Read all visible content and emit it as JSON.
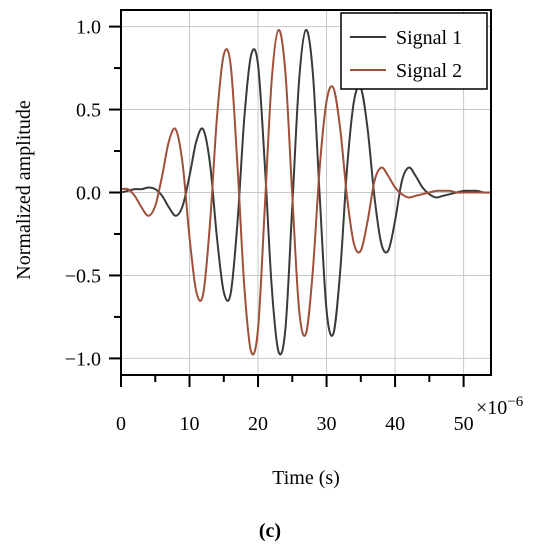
{
  "chart_data": {
    "type": "line",
    "xlabel": "Time (s)",
    "ylabel": "Normalized amplitude",
    "x_multiplier_label": "×10",
    "x_multiplier_exponent": "−6",
    "xlim": [
      0,
      54
    ],
    "ylim": [
      -1.1,
      1.1
    ],
    "x_ticks": [
      0,
      10,
      20,
      30,
      40,
      50
    ],
    "y_ticks": [
      -1.0,
      -0.5,
      0.0,
      0.5,
      1.0
    ],
    "x_tick_labels": [
      "0",
      "10",
      "20",
      "30",
      "40",
      "50"
    ],
    "y_tick_labels": [
      "−1.0",
      "−0.5",
      "0.0",
      "0.5",
      "1.0"
    ],
    "grid": true,
    "legend_position": "top-right",
    "series": [
      {
        "name": "Signal 1",
        "color": "#3a3a3a",
        "x": [
          0,
          1,
          2,
          3,
          4,
          5,
          6,
          7,
          8,
          9,
          10,
          11,
          12,
          13,
          14,
          15,
          16,
          17,
          18,
          19,
          20,
          21,
          22,
          23,
          24,
          25,
          26,
          27,
          28,
          29,
          30,
          31,
          32,
          33,
          34,
          35,
          36,
          37,
          38,
          39,
          40,
          41,
          42,
          43,
          44,
          45,
          46,
          47,
          48,
          49,
          50,
          51,
          52,
          53,
          54
        ],
        "values": [
          0.0,
          0.01,
          0.02,
          0.02,
          0.03,
          0.02,
          -0.02,
          -0.09,
          -0.14,
          -0.08,
          0.1,
          0.31,
          0.38,
          0.17,
          -0.27,
          -0.6,
          -0.61,
          -0.18,
          0.45,
          0.83,
          0.77,
          0.16,
          -0.57,
          -0.96,
          -0.82,
          -0.08,
          0.68,
          0.98,
          0.72,
          -0.02,
          -0.71,
          -0.85,
          -0.47,
          0.15,
          0.55,
          0.63,
          0.38,
          -0.03,
          -0.31,
          -0.35,
          -0.17,
          0.07,
          0.15,
          0.1,
          0.03,
          -0.01,
          -0.03,
          -0.02,
          -0.01,
          0.0,
          0.01,
          0.01,
          0.01,
          0.0,
          0.0
        ]
      },
      {
        "name": "Signal 2",
        "color": "#a0503a",
        "x": [
          0,
          1,
          2,
          3,
          4,
          5,
          6,
          7,
          8,
          9,
          10,
          11,
          12,
          13,
          14,
          15,
          16,
          17,
          18,
          19,
          20,
          21,
          22,
          23,
          24,
          25,
          26,
          27,
          28,
          29,
          30,
          31,
          32,
          33,
          34,
          35,
          36,
          37,
          38,
          39,
          40,
          41,
          42,
          43,
          44,
          45,
          46,
          47,
          48,
          49,
          50,
          51,
          52,
          53,
          54
        ],
        "values": [
          0.02,
          0.02,
          -0.02,
          -0.09,
          -0.14,
          -0.08,
          0.1,
          0.31,
          0.38,
          0.17,
          -0.27,
          -0.6,
          -0.61,
          -0.18,
          0.45,
          0.83,
          0.77,
          0.16,
          -0.57,
          -0.96,
          -0.82,
          -0.08,
          0.68,
          0.98,
          0.72,
          -0.02,
          -0.71,
          -0.85,
          -0.47,
          0.15,
          0.55,
          0.63,
          0.38,
          -0.03,
          -0.31,
          -0.35,
          -0.17,
          0.07,
          0.15,
          0.1,
          0.03,
          -0.01,
          -0.03,
          -0.02,
          -0.01,
          0.0,
          0.01,
          0.01,
          0.01,
          0.0,
          0.0,
          0.0,
          0.0,
          0.0,
          0.0
        ]
      }
    ]
  },
  "caption": "(c)"
}
